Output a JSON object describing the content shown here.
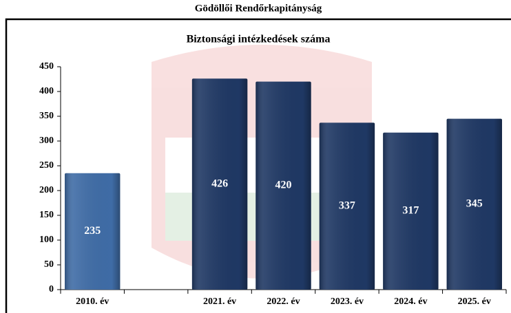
{
  "page_title": "Gödöllői Rendőrkapitányság",
  "chart_data": {
    "type": "bar",
    "title": "Biztonsági intézkedések száma",
    "categories": [
      "2010. év",
      null,
      "2021. év",
      "2022. év",
      "2023. év",
      "2024. év",
      "2025. év"
    ],
    "values": [
      235,
      null,
      426,
      420,
      337,
      317,
      345
    ],
    "colors": [
      "#3f6ca6",
      null,
      "#1f3864",
      "#1f3864",
      "#1f3864",
      "#1f3864",
      "#1f3864"
    ],
    "ylim": [
      0,
      450
    ],
    "yticks": [
      0,
      50,
      100,
      150,
      200,
      250,
      300,
      350,
      400,
      450
    ],
    "grid": false
  }
}
